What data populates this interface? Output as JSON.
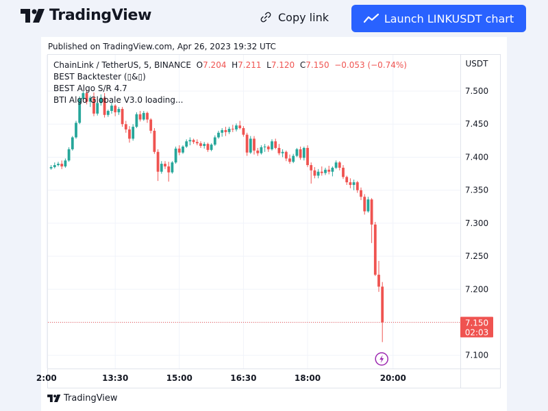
{
  "header": {
    "brand": "TradingView",
    "copy_link_label": "Copy link",
    "launch_label": "Launch LINKUSDT chart"
  },
  "published": "Published on TradingView.com, Apr 26, 2023 19:32 UTC",
  "legend": {
    "symbol": "ChainLink / TetherUS, 5, BINANCE",
    "open_label": "O",
    "open": "7.204",
    "high_label": "H",
    "high": "7.211",
    "low_label": "L",
    "low": "7.120",
    "close_label": "C",
    "close": "7.150",
    "change": "−0.053 (−0.74%)",
    "indicators": [
      "BEST Backtester (▯&▯)",
      "BEST Algo S/R 4.7",
      "BTI Algo Globale V3.0 loading..."
    ]
  },
  "price_axis": {
    "currency": "USDT",
    "last_price": "7.150",
    "countdown": "02:03"
  },
  "footer_brand": "TradingView",
  "colors": {
    "up": "#26a69a",
    "down": "#ef5350",
    "accent": "#2962ff",
    "alert": "#9c27b0"
  },
  "chart_data": {
    "type": "candlestick",
    "title": "ChainLink / TetherUS, 5, BINANCE",
    "x_ticks": [
      {
        "label": "2:00",
        "bar": -1.3
      },
      {
        "label": "13:30",
        "bar": 18
      },
      {
        "label": "15:00",
        "bar": 36
      },
      {
        "label": "16:30",
        "bar": 54
      },
      {
        "label": "18:00",
        "bar": 72
      },
      {
        "label": "20:00",
        "bar": 96
      }
    ],
    "y_ticks": [
      7.1,
      7.15,
      7.2,
      7.25,
      7.3,
      7.35,
      7.4,
      7.45,
      7.5
    ],
    "ylim": [
      7.08,
      7.555
    ],
    "last_price": 7.15,
    "candles": [
      [
        7.383,
        7.388,
        7.381,
        7.385
      ],
      [
        7.385,
        7.392,
        7.383,
        7.388
      ],
      [
        7.388,
        7.393,
        7.386,
        7.39
      ],
      [
        7.39,
        7.395,
        7.382,
        7.386
      ],
      [
        7.386,
        7.398,
        7.384,
        7.395
      ],
      [
        7.395,
        7.415,
        7.393,
        7.412
      ],
      [
        7.412,
        7.432,
        7.41,
        7.43
      ],
      [
        7.43,
        7.455,
        7.428,
        7.452
      ],
      [
        7.452,
        7.492,
        7.45,
        7.488
      ],
      [
        7.488,
        7.5,
        7.484,
        7.497
      ],
      [
        7.497,
        7.502,
        7.48,
        7.484
      ],
      [
        7.484,
        7.493,
        7.476,
        7.49
      ],
      [
        7.49,
        7.498,
        7.462,
        7.466
      ],
      [
        7.466,
        7.484,
        7.463,
        7.482
      ],
      [
        7.482,
        7.495,
        7.478,
        7.49
      ],
      [
        7.49,
        7.497,
        7.46,
        7.464
      ],
      [
        7.464,
        7.472,
        7.461,
        7.47
      ],
      [
        7.47,
        7.482,
        7.466,
        7.478
      ],
      [
        7.478,
        7.48,
        7.462,
        7.468
      ],
      [
        7.468,
        7.476,
        7.464,
        7.473
      ],
      [
        7.473,
        7.476,
        7.446,
        7.45
      ],
      [
        7.45,
        7.455,
        7.437,
        7.442
      ],
      [
        7.442,
        7.447,
        7.422,
        7.428
      ],
      [
        7.428,
        7.45,
        7.425,
        7.446
      ],
      [
        7.446,
        7.468,
        7.444,
        7.465
      ],
      [
        7.465,
        7.47,
        7.454,
        7.457
      ],
      [
        7.457,
        7.47,
        7.455,
        7.467
      ],
      [
        7.467,
        7.469,
        7.452,
        7.457
      ],
      [
        7.457,
        7.459,
        7.436,
        7.44
      ],
      [
        7.44,
        7.444,
        7.405,
        7.408
      ],
      [
        7.408,
        7.412,
        7.364,
        7.378
      ],
      [
        7.378,
        7.394,
        7.375,
        7.39
      ],
      [
        7.39,
        7.394,
        7.382,
        7.386
      ],
      [
        7.386,
        7.393,
        7.363,
        7.377
      ],
      [
        7.377,
        7.394,
        7.375,
        7.392
      ],
      [
        7.392,
        7.416,
        7.39,
        7.413
      ],
      [
        7.413,
        7.418,
        7.403,
        7.407
      ],
      [
        7.407,
        7.418,
        7.405,
        7.416
      ],
      [
        7.416,
        7.427,
        7.414,
        7.424
      ],
      [
        7.424,
        7.43,
        7.418,
        7.426
      ],
      [
        7.426,
        7.428,
        7.42,
        7.423
      ],
      [
        7.423,
        7.427,
        7.418,
        7.421
      ],
      [
        7.421,
        7.424,
        7.414,
        7.417
      ],
      [
        7.417,
        7.423,
        7.413,
        7.42
      ],
      [
        7.42,
        7.422,
        7.408,
        7.411
      ],
      [
        7.411,
        7.421,
        7.409,
        7.419
      ],
      [
        7.419,
        7.433,
        7.417,
        7.43
      ],
      [
        7.43,
        7.44,
        7.428,
        7.437
      ],
      [
        7.437,
        7.444,
        7.431,
        7.441
      ],
      [
        7.441,
        7.446,
        7.432,
        7.438
      ],
      [
        7.438,
        7.446,
        7.435,
        7.443
      ],
      [
        7.443,
        7.449,
        7.438,
        7.442
      ],
      [
        7.442,
        7.451,
        7.439,
        7.448
      ],
      [
        7.448,
        7.455,
        7.442,
        7.444
      ],
      [
        7.444,
        7.447,
        7.431,
        7.434
      ],
      [
        7.434,
        7.437,
        7.402,
        7.407
      ],
      [
        7.407,
        7.432,
        7.405,
        7.428
      ],
      [
        7.428,
        7.432,
        7.404,
        7.41
      ],
      [
        7.41,
        7.414,
        7.402,
        7.406
      ],
      [
        7.406,
        7.418,
        7.404,
        7.415
      ],
      [
        7.415,
        7.42,
        7.408,
        7.416
      ],
      [
        7.416,
        7.418,
        7.408,
        7.412
      ],
      [
        7.412,
        7.427,
        7.41,
        7.424
      ],
      [
        7.424,
        7.428,
        7.412,
        7.414
      ],
      [
        7.414,
        7.42,
        7.403,
        7.406
      ],
      [
        7.406,
        7.412,
        7.4,
        7.408
      ],
      [
        7.408,
        7.41,
        7.394,
        7.398
      ],
      [
        7.398,
        7.404,
        7.39,
        7.393
      ],
      [
        7.393,
        7.405,
        7.391,
        7.402
      ],
      [
        7.402,
        7.414,
        7.4,
        7.412
      ],
      [
        7.412,
        7.416,
        7.396,
        7.399
      ],
      [
        7.399,
        7.416,
        7.395,
        7.414
      ],
      [
        7.414,
        7.418,
        7.385,
        7.388
      ],
      [
        7.388,
        7.392,
        7.36,
        7.38
      ],
      [
        7.38,
        7.385,
        7.368,
        7.372
      ],
      [
        7.372,
        7.382,
        7.368,
        7.378
      ],
      [
        7.378,
        7.386,
        7.372,
        7.376
      ],
      [
        7.376,
        7.384,
        7.373,
        7.381
      ],
      [
        7.381,
        7.387,
        7.374,
        7.378
      ],
      [
        7.378,
        7.386,
        7.371,
        7.384
      ],
      [
        7.384,
        7.395,
        7.382,
        7.392
      ],
      [
        7.392,
        7.394,
        7.38,
        7.384
      ],
      [
        7.384,
        7.388,
        7.367,
        7.37
      ],
      [
        7.37,
        7.372,
        7.358,
        7.362
      ],
      [
        7.362,
        7.368,
        7.353,
        7.358
      ],
      [
        7.358,
        7.366,
        7.35,
        7.362
      ],
      [
        7.362,
        7.364,
        7.346,
        7.35
      ],
      [
        7.35,
        7.354,
        7.335,
        7.34
      ],
      [
        7.34,
        7.344,
        7.313,
        7.318
      ],
      [
        7.318,
        7.34,
        7.316,
        7.336
      ],
      [
        7.336,
        7.338,
        7.27,
        7.298
      ],
      [
        7.298,
        7.302,
        7.22,
        7.222
      ],
      [
        7.222,
        7.243,
        7.196,
        7.204
      ],
      [
        7.204,
        7.211,
        7.12,
        7.15
      ]
    ]
  }
}
